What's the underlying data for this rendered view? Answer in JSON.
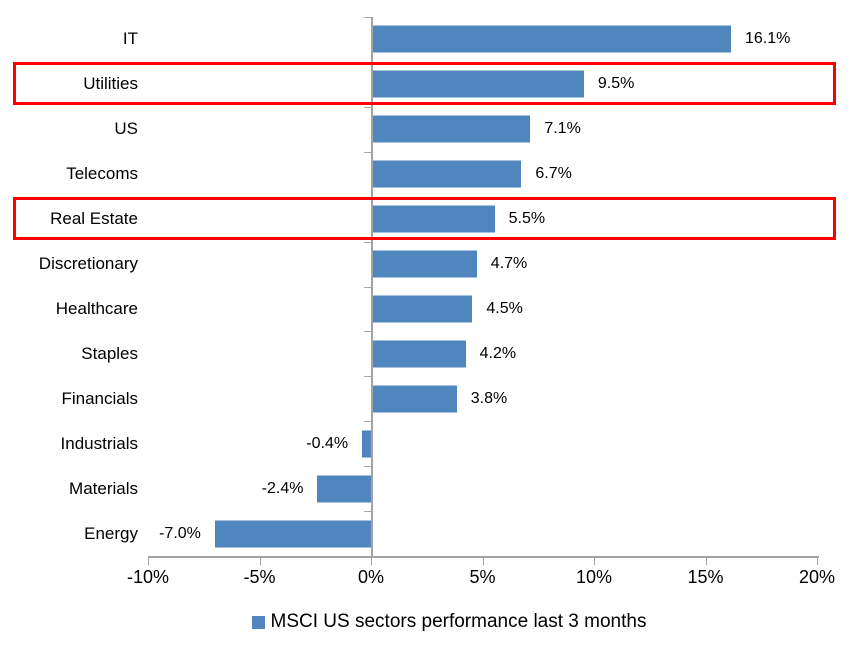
{
  "chart_data": {
    "type": "bar",
    "orientation": "horizontal",
    "title": "",
    "legend": "MSCI US sectors performance last 3 months",
    "legend_position": "bottom",
    "categories": [
      "IT",
      "Utilities",
      "US",
      "Telecoms",
      "Real Estate",
      "Discretionary",
      "Healthcare",
      "Staples",
      "Financials",
      "Industrials",
      "Materials",
      "Energy"
    ],
    "values": [
      16.1,
      9.5,
      7.1,
      6.7,
      5.5,
      4.7,
      4.5,
      4.2,
      3.8,
      -0.4,
      -2.4,
      -7.0
    ],
    "value_labels": [
      "16.1%",
      "9.5%",
      "7.1%",
      "6.7%",
      "5.5%",
      "4.7%",
      "4.5%",
      "4.2%",
      "3.8%",
      "-0.4%",
      "-2.4%",
      "-7.0%"
    ],
    "highlighted_categories": [
      "Utilities",
      "Real Estate"
    ],
    "x_ticks": [
      "-10%",
      "-5%",
      "0%",
      "5%",
      "10%",
      "15%",
      "20%"
    ],
    "x_tick_values": [
      -10,
      -5,
      0,
      5,
      10,
      15,
      20
    ],
    "xlim": [
      -10,
      20
    ],
    "grid": false,
    "bar_color": "#4E86BD",
    "highlight_color": "#FF0000",
    "axis_color": "#A3A3A3",
    "text_color": "#000000"
  }
}
